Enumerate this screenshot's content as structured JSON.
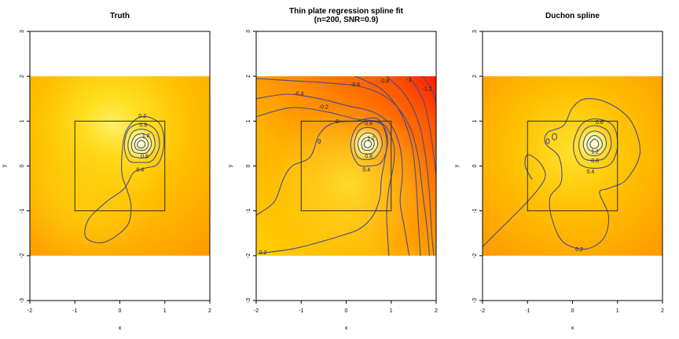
{
  "chart_data": [
    {
      "type": "heatmap",
      "title": "Truth",
      "title2": "",
      "xlabel": "x",
      "ylabel": "y",
      "xlim": [
        -2,
        2
      ],
      "ylim": [
        -3,
        3
      ],
      "x_ticks": [
        -2,
        -1,
        0,
        1,
        2
      ],
      "y_ticks": [
        -3,
        -2,
        -1,
        0,
        1,
        2,
        3
      ],
      "field_extent": {
        "x": [
          -2,
          2
        ],
        "y": [
          -2,
          2
        ]
      },
      "square": {
        "x": [
          -1,
          1
        ],
        "y": [
          -1,
          1
        ]
      },
      "contour_labels": [
        {
          "text": "0.2",
          "x": 0.5,
          "y": 1.12
        },
        {
          "text": "0.6",
          "x": 0.52,
          "y": 0.92
        },
        {
          "text": "1.2",
          "x": 0.58,
          "y": 0.68
        },
        {
          "text": "0.8",
          "x": 0.55,
          "y": 0.22
        },
        {
          "text": "0.4",
          "x": 0.45,
          "y": -0.08
        }
      ]
    },
    {
      "type": "heatmap",
      "title": "Thin plate regression spline fit",
      "title2": "(n=200, SNR=0.9)",
      "xlabel": "x",
      "ylabel": "y",
      "xlim": [
        -2,
        2
      ],
      "ylim": [
        -3,
        3
      ],
      "x_ticks": [
        -2,
        -1,
        0,
        1,
        2
      ],
      "y_ticks": [
        -3,
        -2,
        -1,
        0,
        1,
        2,
        3
      ],
      "field_extent": {
        "x": [
          -2,
          2
        ],
        "y": [
          -2,
          2
        ]
      },
      "square": {
        "x": [
          -1,
          1
        ],
        "y": [
          -1,
          1
        ]
      },
      "contour_labels": [
        {
          "text": "-0.6",
          "x": 0.2,
          "y": 1.82
        },
        {
          "text": "-0.8",
          "x": 0.85,
          "y": 1.9
        },
        {
          "text": "-1",
          "x": 1.4,
          "y": 1.92
        },
        {
          "text": "-1.2",
          "x": 1.8,
          "y": 1.72
        },
        {
          "text": "-0.4",
          "x": -1.05,
          "y": 1.62
        },
        {
          "text": "-0.2",
          "x": -0.5,
          "y": 1.32
        },
        {
          "text": "0",
          "x": -0.2,
          "y": 1.0
        },
        {
          "text": "0.6",
          "x": 0.5,
          "y": 0.95
        },
        {
          "text": "1.2",
          "x": 0.55,
          "y": 0.62
        },
        {
          "text": "0.8",
          "x": 0.5,
          "y": 0.22
        },
        {
          "text": "0.4",
          "x": 0.45,
          "y": -0.08
        },
        {
          "text": "0.2",
          "x": -1.85,
          "y": -1.92
        }
      ]
    },
    {
      "type": "heatmap",
      "title": "Duchon spline",
      "title2": "",
      "xlabel": "x",
      "ylabel": "y",
      "xlim": [
        -2,
        2
      ],
      "ylim": [
        -3,
        3
      ],
      "x_ticks": [
        -2,
        -1,
        0,
        1,
        2
      ],
      "y_ticks": [
        -3,
        -2,
        -1,
        0,
        1,
        2,
        3
      ],
      "field_extent": {
        "x": [
          -2,
          2
        ],
        "y": [
          -2,
          2
        ]
      },
      "square": {
        "x": [
          -1,
          1
        ],
        "y": [
          -1,
          1
        ]
      },
      "contour_labels": [
        {
          "text": "0.6",
          "x": 0.6,
          "y": 0.98
        },
        {
          "text": "1.2",
          "x": 0.5,
          "y": 0.32
        },
        {
          "text": "0.8",
          "x": 0.5,
          "y": 0.12
        },
        {
          "text": "0.4",
          "x": 0.4,
          "y": -0.12
        },
        {
          "text": "0.2",
          "x": 0.15,
          "y": -1.85
        }
      ]
    }
  ]
}
